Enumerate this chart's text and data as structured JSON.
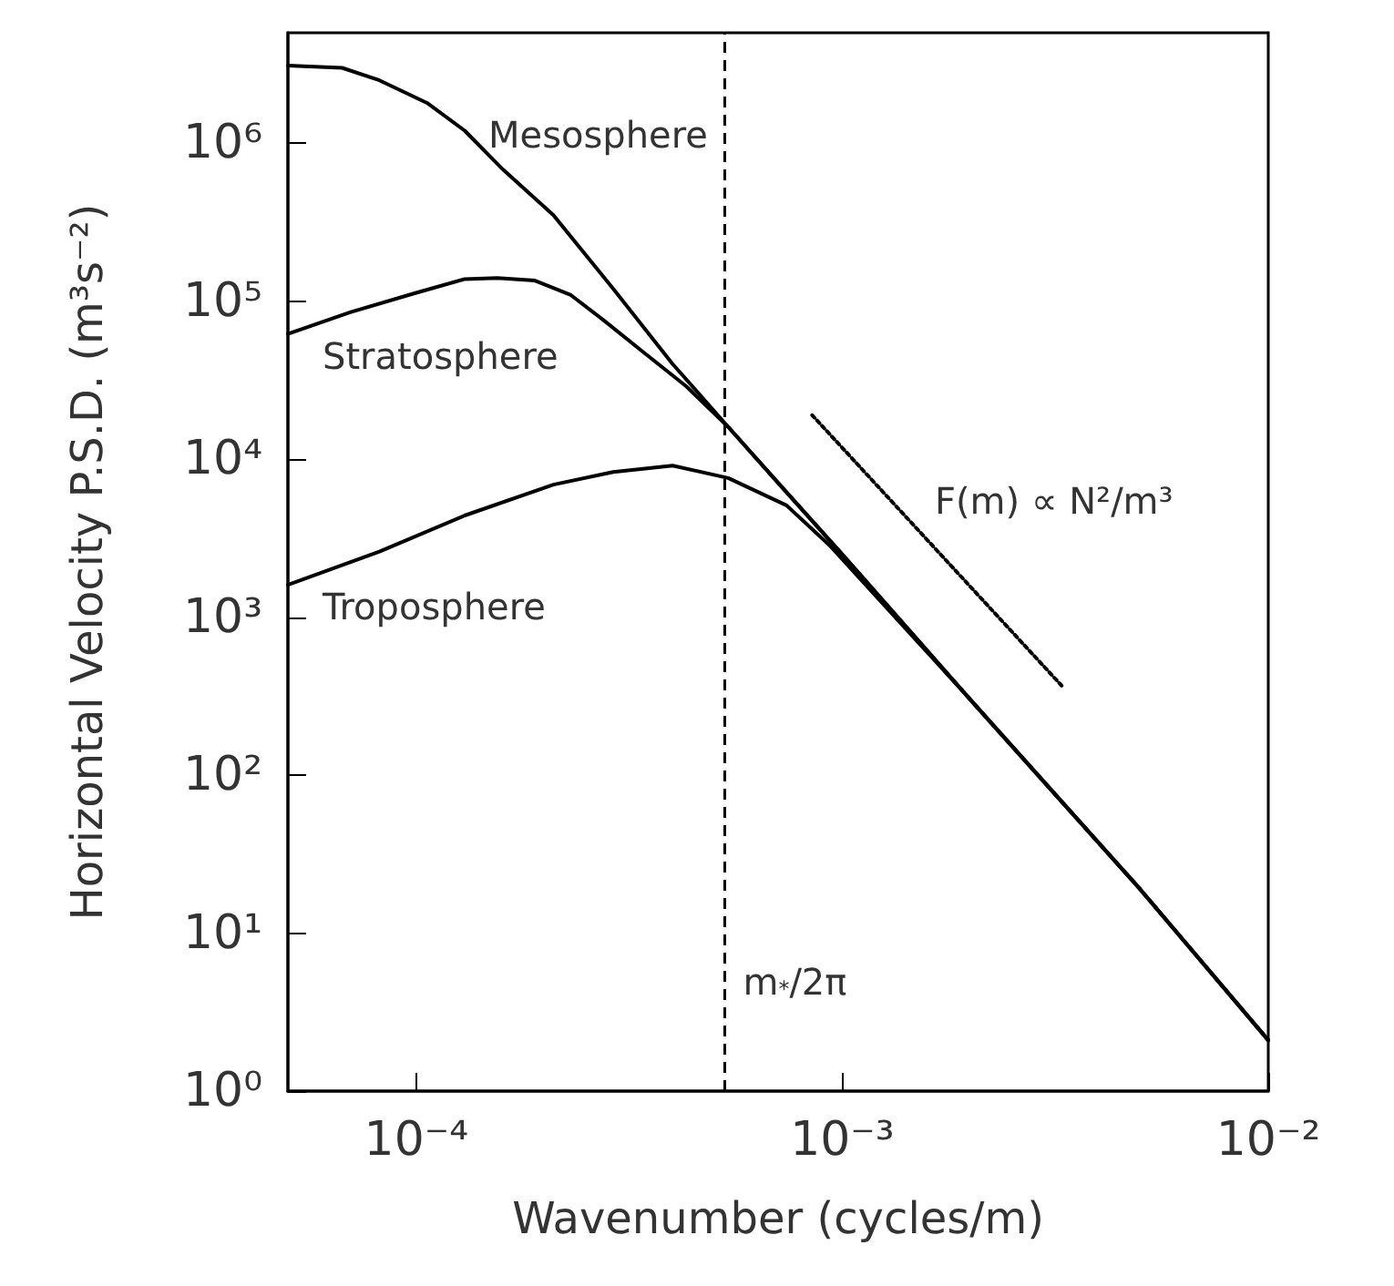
{
  "chart_data": {
    "type": "line",
    "xlabel": "Wavenumber (cycles/m)",
    "ylabel": "Horizontal Velocity P.S.D. (m³s⁻²)",
    "log": "xy",
    "xlim": [
      5e-05,
      0.01
    ],
    "ylim": [
      1,
      5000000
    ],
    "xticks": [
      {
        "value": 0.0001,
        "label": "10⁻⁴"
      },
      {
        "value": 0.001,
        "label": "10⁻³"
      },
      {
        "value": 0.01,
        "label": "10⁻²"
      }
    ],
    "yticks": [
      {
        "value": 1,
        "label": "10⁰"
      },
      {
        "value": 10,
        "label": "10¹"
      },
      {
        "value": 100,
        "label": "10²"
      },
      {
        "value": 1000,
        "label": "10³"
      },
      {
        "value": 10000,
        "label": "10⁴"
      },
      {
        "value": 100000,
        "label": "10⁵"
      },
      {
        "value": 1000000,
        "label": "10⁶"
      }
    ],
    "series": [
      {
        "name": "Mesosphere",
        "color": "#000000",
        "x": [
          5e-05,
          6.7e-05,
          8.2e-05,
          0.000106,
          0.00013,
          0.00016,
          0.00021,
          0.00029,
          0.0004,
          0.00054,
          0.0007,
          0.001,
          0.002,
          0.005,
          0.01
        ],
        "values": [
          3100000,
          3000000,
          2500000,
          1800000,
          1200000,
          680000,
          350000,
          120000,
          40000,
          16000,
          7300,
          2500,
          300,
          19,
          2.1
        ]
      },
      {
        "name": "Stratosphere",
        "color": "#000000",
        "x": [
          5e-05,
          7e-05,
          0.0001,
          0.00013,
          0.000155,
          0.00019,
          0.00023,
          0.000275,
          0.00034,
          0.00043,
          0.00054,
          0.0007,
          0.001,
          0.002,
          0.005,
          0.01
        ],
        "values": [
          62000,
          85000,
          113000,
          138000,
          140000,
          135000,
          110000,
          76000,
          48000,
          29000,
          16000,
          7300,
          2500,
          300,
          19,
          2.1
        ]
      },
      {
        "name": "Troposphere",
        "color": "#000000",
        "x": [
          5e-05,
          8.2e-05,
          0.00013,
          0.00021,
          0.00029,
          0.0004,
          0.00054,
          0.00074,
          0.00094,
          0.002,
          0.005,
          0.01
        ],
        "values": [
          1600,
          2600,
          4400,
          6900,
          8300,
          9100,
          7600,
          5100,
          2800,
          300,
          19,
          2.1
        ]
      },
      {
        "type": "line",
        "color": "#000000",
        "line_style": "dotted",
        "x": [
          0.00085,
          0.0033
        ],
        "values": [
          19000,
          360
        ]
      }
    ],
    "ref_lines": [
      {
        "axis": "x",
        "value": 0.00053,
        "label": "m$_{*}$/2π",
        "color": "#000000",
        "line_style": "dashed"
      }
    ],
    "annotations": [
      "F(m) ∝ N²/m³"
    ]
  }
}
